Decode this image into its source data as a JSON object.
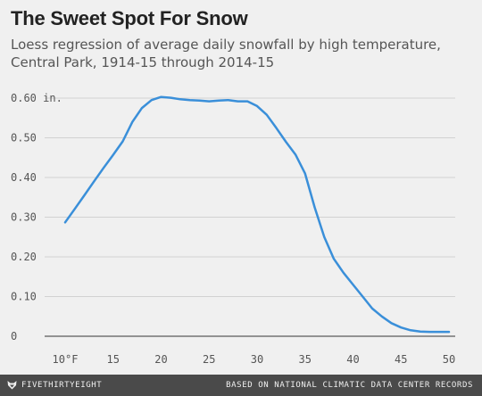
{
  "chart_data": {
    "type": "line",
    "title": "The Sweet Spot For Snow",
    "subtitle": "Loess regression of average daily snowfall by high temperature, Central Park, 1914-15 through 2014-15",
    "xlabel": "",
    "ylabel": "",
    "xlim": [
      8,
      52
    ],
    "ylim": [
      0,
      0.62
    ],
    "x_ticks": [
      10,
      15,
      20,
      25,
      30,
      35,
      40,
      45,
      50
    ],
    "x_tick_labels": [
      "10°F",
      "15",
      "20",
      "25",
      "30",
      "35",
      "40",
      "45",
      "50"
    ],
    "y_ticks": [
      0,
      0.1,
      0.2,
      0.3,
      0.4,
      0.5,
      0.6
    ],
    "y_tick_labels": [
      "0",
      "0.10",
      "0.20",
      "0.30",
      "0.40",
      "0.50",
      "0.60 in."
    ],
    "grid": "horizontal",
    "color": "#3a8fd9",
    "series": [
      {
        "x": [
          10,
          11,
          12,
          13,
          14,
          15,
          16,
          17,
          18,
          19,
          20,
          21,
          22,
          23,
          24,
          25,
          26,
          27,
          28,
          29,
          30,
          31,
          32,
          33,
          34,
          35,
          36,
          37,
          38,
          39,
          40,
          41,
          42,
          43,
          44,
          45,
          46,
          47,
          48,
          49,
          50
        ],
        "y": [
          0.287,
          0.321,
          0.355,
          0.39,
          0.424,
          0.457,
          0.491,
          0.54,
          0.575,
          0.595,
          0.603,
          0.601,
          0.597,
          0.595,
          0.594,
          0.592,
          0.594,
          0.595,
          0.592,
          0.592,
          0.58,
          0.558,
          0.525,
          0.49,
          0.458,
          0.41,
          0.325,
          0.25,
          0.195,
          0.16,
          0.13,
          0.1,
          0.07,
          0.05,
          0.033,
          0.022,
          0.015,
          0.012,
          0.011,
          0.011,
          0.011
        ]
      }
    ]
  },
  "footer": {
    "brand": "FIVETHIRTYEIGHT",
    "source": "BASED ON NATIONAL CLIMATIC DATA CENTER RECORDS",
    "logo_icon": "fox-icon"
  }
}
